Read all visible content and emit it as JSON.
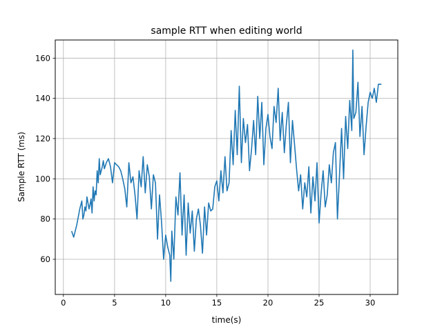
{
  "chart_data": {
    "type": "line",
    "title": "sample RTT when editing world",
    "xlabel": "time(s)",
    "ylabel": "Sample RTT (ms)",
    "xlim": [
      -0.8,
      32.7
    ],
    "ylim": [
      42.5,
      169.0
    ],
    "xticks": [
      0,
      5,
      10,
      15,
      20,
      25,
      30
    ],
    "yticks": [
      60,
      80,
      100,
      120,
      140,
      160
    ],
    "grid": true,
    "legend": "none",
    "series_color": "#1f77b4",
    "series": [
      {
        "x": [
          0.8,
          1.0,
          1.3,
          1.6,
          1.8,
          1.9,
          2.0,
          2.1,
          2.2,
          2.3,
          2.4,
          2.5,
          2.6,
          2.7,
          2.8,
          2.9,
          3.0,
          3.1,
          3.2,
          3.3,
          3.4,
          3.5,
          3.6,
          3.7,
          3.8,
          3.9,
          4.0,
          4.2,
          4.4,
          4.6,
          4.8,
          5.0,
          5.2,
          5.4,
          5.6,
          5.8,
          6.0,
          6.2,
          6.4,
          6.6,
          6.8,
          7.0,
          7.2,
          7.4,
          7.6,
          7.8,
          8.0,
          8.2,
          8.4,
          8.6,
          8.8,
          9.0,
          9.2,
          9.4,
          9.6,
          9.8,
          10.0,
          10.2,
          10.4,
          10.5,
          10.6,
          10.8,
          11.0,
          11.2,
          11.4,
          11.6,
          11.8,
          12.0,
          12.2,
          12.4,
          12.6,
          12.8,
          13.0,
          13.2,
          13.4,
          13.6,
          13.8,
          14.0,
          14.2,
          14.4,
          14.6,
          14.8,
          15.0,
          15.2,
          15.4,
          15.6,
          15.8,
          16.0,
          16.2,
          16.4,
          16.6,
          16.8,
          17.0,
          17.2,
          17.4,
          17.6,
          17.8,
          18.0,
          18.2,
          18.4,
          18.6,
          18.8,
          19.0,
          19.2,
          19.4,
          19.6,
          19.8,
          20.0,
          20.2,
          20.4,
          20.6,
          20.8,
          21.0,
          21.2,
          21.4,
          21.6,
          21.8,
          22.0,
          22.2,
          22.4,
          22.6,
          22.8,
          23.0,
          23.2,
          23.4,
          23.6,
          23.8,
          24.0,
          24.2,
          24.4,
          24.6,
          24.8,
          25.0,
          25.2,
          25.4,
          25.6,
          25.8,
          26.0,
          26.2,
          26.4,
          26.6,
          26.8,
          27.0,
          27.2,
          27.4,
          27.6,
          27.8,
          28.0,
          28.2,
          28.3,
          28.4,
          28.6,
          28.8,
          29.0,
          29.2,
          29.4,
          29.6,
          29.8,
          30.0,
          30.2,
          30.4,
          30.6,
          30.8,
          31.1
        ],
        "y": [
          74,
          71,
          77,
          85,
          89,
          80,
          82,
          86,
          84,
          91,
          88,
          85,
          87,
          90,
          83,
          96,
          89,
          94,
          92,
          104,
          98,
          110,
          102,
          104,
          106,
          109,
          105,
          108,
          110,
          106,
          98,
          108,
          107,
          106,
          104,
          100,
          95,
          86,
          108,
          98,
          101,
          92,
          80,
          104,
          96,
          111,
          93,
          107,
          101,
          85,
          102,
          98,
          70,
          92,
          78,
          60,
          72,
          66,
          62,
          49,
          74,
          60,
          91,
          82,
          103,
          72,
          92,
          62,
          88,
          73,
          84,
          64,
          80,
          85,
          77,
          63,
          86,
          72,
          88,
          84,
          85,
          96,
          99,
          89,
          104,
          93,
          111,
          94,
          98,
          124,
          107,
          134,
          112,
          146,
          108,
          130,
          118,
          127,
          104,
          115,
          129,
          112,
          141,
          120,
          138,
          107,
          125,
          132,
          121,
          115,
          136,
          128,
          145,
          119,
          133,
          113,
          127,
          138,
          108,
          129,
          117,
          105,
          94,
          102,
          85,
          98,
          91,
          106,
          83,
          101,
          89,
          108,
          78,
          93,
          104,
          86,
          92,
          107,
          98,
          113,
          118,
          80,
          102,
          125,
          100,
          131,
          115,
          139,
          124,
          164,
          130,
          133,
          148,
          121,
          136,
          112,
          126,
          138,
          143,
          140,
          145,
          138,
          147,
          147
        ]
      }
    ]
  }
}
